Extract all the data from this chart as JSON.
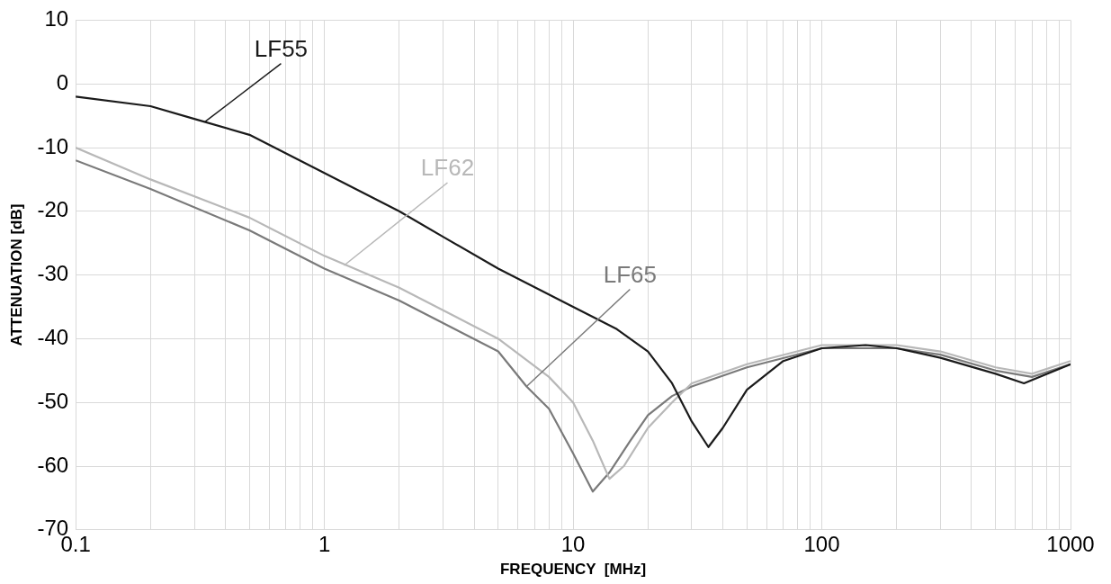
{
  "chart_data": {
    "type": "line",
    "xlabel": "FREQUENCY  [MHz]",
    "ylabel": "ATTENUATION [dB]",
    "log": "x",
    "grid": true,
    "legend": false,
    "marker": "none",
    "line_style": "solid",
    "xlim": [
      0.1,
      1000
    ],
    "ylim": [
      -70,
      10
    ],
    "xticks": [
      0.1,
      {
        "value": 0.2,
        "label": null
      },
      {
        "value": 0.3,
        "label": null
      },
      {
        "value": 0.4,
        "label": null
      },
      {
        "value": 0.5,
        "label": null
      },
      {
        "value": 0.6,
        "label": null
      },
      {
        "value": 0.7,
        "label": null
      },
      {
        "value": 0.8,
        "label": null
      },
      {
        "value": 0.9,
        "label": null
      },
      1,
      {
        "value": 2,
        "label": null
      },
      {
        "value": 3,
        "label": null
      },
      {
        "value": 4,
        "label": null
      },
      {
        "value": 5,
        "label": null
      },
      {
        "value": 6,
        "label": null
      },
      {
        "value": 7,
        "label": null
      },
      {
        "value": 8,
        "label": null
      },
      {
        "value": 9,
        "label": null
      },
      10,
      {
        "value": 20,
        "label": null
      },
      {
        "value": 30,
        "label": null
      },
      {
        "value": 40,
        "label": null
      },
      {
        "value": 50,
        "label": null
      },
      {
        "value": 60,
        "label": null
      },
      {
        "value": 70,
        "label": null
      },
      {
        "value": 80,
        "label": null
      },
      {
        "value": 90,
        "label": null
      },
      100,
      {
        "value": 200,
        "label": null
      },
      {
        "value": 300,
        "label": null
      },
      {
        "value": 400,
        "label": null
      },
      {
        "value": 500,
        "label": null
      },
      {
        "value": 600,
        "label": null
      },
      {
        "value": 700,
        "label": null
      },
      {
        "value": 800,
        "label": null
      },
      {
        "value": 900,
        "label": null
      },
      1000
    ],
    "yticks": [
      -70,
      -60,
      -50,
      -40,
      -30,
      -20,
      -10,
      0,
      10
    ],
    "series": [
      {
        "color": "#1a1a1a",
        "x": [
          0.1,
          0.2,
          0.3,
          0.5,
          1,
          2,
          3,
          5,
          10,
          15,
          20,
          25,
          30,
          35,
          40,
          50,
          70,
          100,
          150,
          200,
          300,
          500,
          650,
          1000
        ],
        "values": [
          -2,
          -3.5,
          -5.5,
          -8,
          -14,
          -20,
          -24,
          -29,
          -35,
          -38.5,
          -42,
          -47,
          -53,
          -57,
          -54,
          -48,
          -43.5,
          -41.5,
          -41,
          -41.5,
          -43,
          -45.5,
          -47,
          -44
        ]
      },
      {
        "color": "#b8b8b8",
        "x": [
          0.1,
          0.2,
          0.5,
          1,
          2,
          5,
          8,
          10,
          12,
          14,
          16,
          20,
          25,
          30,
          50,
          100,
          200,
          300,
          500,
          700,
          1000
        ],
        "values": [
          -10,
          -15,
          -21,
          -27,
          -32,
          -40,
          -46,
          -50,
          -56,
          -62,
          -60,
          -54,
          -50,
          -47,
          -44,
          -41,
          -41,
          -42,
          -44.5,
          -45.5,
          -43.5
        ]
      },
      {
        "color": "#7a7a7a",
        "x": [
          0.1,
          0.2,
          0.5,
          1,
          2,
          5,
          6.5,
          8,
          10,
          12,
          14,
          17,
          20,
          25,
          30,
          50,
          100,
          200,
          300,
          500,
          700,
          1000
        ],
        "values": [
          -12,
          -16.5,
          -23,
          -29,
          -34,
          -42,
          -47.5,
          -51,
          -58,
          -64,
          -61,
          -56,
          -52,
          -49,
          -47.5,
          -44.5,
          -41.5,
          -41.5,
          -42.5,
          -45,
          -46,
          -44
        ]
      }
    ],
    "annotations": [
      {
        "text": "LF55",
        "x": 0.33,
        "y": -6
      },
      {
        "text": "LF62",
        "x": 1.2,
        "y": -28.5
      },
      {
        "text": "LF65",
        "x": 6.5,
        "y": -47.5
      }
    ]
  }
}
